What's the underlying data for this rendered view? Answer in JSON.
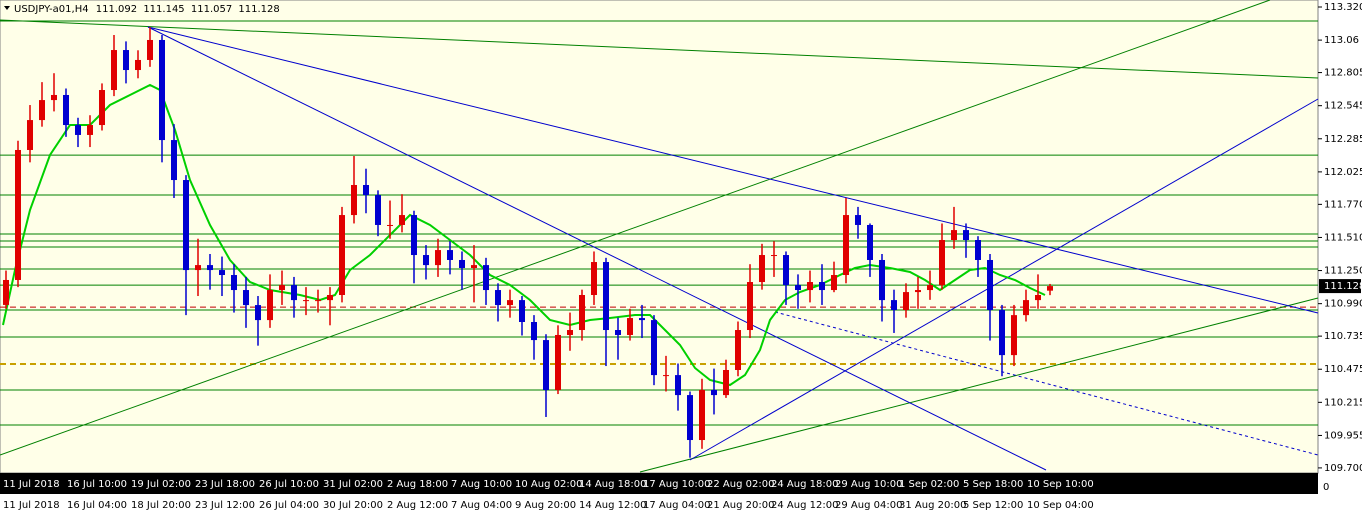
{
  "chart_data": {
    "type": "candlestick",
    "title": "USDJPY-a01,H4",
    "up_color": "#e00000",
    "down_color": "#0000d0",
    "ylim": [
      109.66,
      113.375
    ],
    "yticks": [
      {
        "value": 113.32,
        "label": "113.320"
      },
      113.06,
      112.805,
      112.545,
      112.285,
      112.025,
      {
        "value": 111.77,
        "label": "111.770"
      },
      {
        "value": 111.51,
        "label": "111.510"
      },
      {
        "value": 111.25,
        "label": "111.250"
      },
      {
        "value": 110.99,
        "label": "110.990"
      },
      110.735,
      110.475,
      110.215,
      109.955,
      {
        "value": 109.7,
        "label": "109.700"
      }
    ],
    "open": [
      110.98,
      111.176,
      112.197,
      112.432,
      112.589,
      112.629,
      112.393,
      112.315,
      112.393,
      112.668,
      112.982,
      112.825,
      112.904,
      113.061,
      112.275,
      111.961,
      111.254,
      111.293,
      111.254,
      111.215,
      111.097,
      110.979,
      110.861,
      111.097,
      111.136,
      111.018,
      111.018,
      111.018,
      111.058,
      111.686,
      111.922,
      111.843,
      111.608,
      111.608,
      111.686,
      111.372,
      111.293,
      111.411,
      111.333,
      111.27,
      111.293,
      111.097,
      110.979,
      111.018,
      110.846,
      110.704,
      110.312,
      110.744,
      110.783,
      111.058,
      111.317,
      110.783,
      110.744,
      110.877,
      110.861,
      110.429,
      110.429,
      110.272,
      109.919,
      110.312,
      110.272,
      110.469,
      110.783,
      111.16,
      111.372,
      111.372,
      111.136,
      111.097,
      111.16,
      111.097,
      111.215,
      111.686,
      111.608,
      111.333,
      111.018,
      110.94,
      111.081,
      111.097,
      111.136,
      111.49,
      111.568,
      111.49,
      111.333,
      110.94,
      110.586,
      110.9,
      111.018,
      111.092
    ],
    "high": [
      111.25,
      112.27,
      112.55,
      112.73,
      112.8,
      112.68,
      112.45,
      112.47,
      112.72,
      113.1,
      113.05,
      112.98,
      113.16,
      113.1,
      112.4,
      112.0,
      111.5,
      111.38,
      111.36,
      111.3,
      111.2,
      111.05,
      111.22,
      111.25,
      111.2,
      111.12,
      111.1,
      111.12,
      111.75,
      112.15,
      112.05,
      111.88,
      111.8,
      111.85,
      111.72,
      111.45,
      111.5,
      111.48,
      111.4,
      111.45,
      111.35,
      111.15,
      111.1,
      111.05,
      110.9,
      110.75,
      110.82,
      110.92,
      111.1,
      111.4,
      111.35,
      110.88,
      110.95,
      110.98,
      110.9,
      110.58,
      110.52,
      110.3,
      110.4,
      110.48,
      110.55,
      110.85,
      111.3,
      111.46,
      111.48,
      111.4,
      111.22,
      111.25,
      111.3,
      111.32,
      111.82,
      111.75,
      111.62,
      111.38,
      111.1,
      111.15,
      111.2,
      111.25,
      111.62,
      111.75,
      111.62,
      111.52,
      111.38,
      110.98,
      110.98,
      111.1,
      111.22,
      111.145
    ],
    "low": [
      110.95,
      111.12,
      112.1,
      112.38,
      112.5,
      112.3,
      112.22,
      112.22,
      112.35,
      112.62,
      112.72,
      112.76,
      112.85,
      112.1,
      111.82,
      110.9,
      111.05,
      111.1,
      111.05,
      110.92,
      110.8,
      110.66,
      110.8,
      110.98,
      110.88,
      110.9,
      110.92,
      110.82,
      111.0,
      111.62,
      111.7,
      111.52,
      111.5,
      111.55,
      111.15,
      111.18,
      111.2,
      111.22,
      111.1,
      111.0,
      110.98,
      110.85,
      110.88,
      110.74,
      110.55,
      110.1,
      110.28,
      110.62,
      110.7,
      110.98,
      110.5,
      110.55,
      110.7,
      110.72,
      110.35,
      110.3,
      110.15,
      109.78,
      109.85,
      110.12,
      110.25,
      110.42,
      110.72,
      111.1,
      111.2,
      110.98,
      110.95,
      111.0,
      110.98,
      111.08,
      111.15,
      111.5,
      111.2,
      110.85,
      110.76,
      110.88,
      110.95,
      111.02,
      111.1,
      111.42,
      111.35,
      111.2,
      110.7,
      110.42,
      110.5,
      110.85,
      110.95,
      111.057
    ],
    "close": [
      111.176,
      112.197,
      112.432,
      112.589,
      112.629,
      112.393,
      112.315,
      112.393,
      112.668,
      112.982,
      112.825,
      112.904,
      113.061,
      112.275,
      111.961,
      111.254,
      111.293,
      111.254,
      111.215,
      111.097,
      110.979,
      110.861,
      111.097,
      111.136,
      111.018,
      111.018,
      111.018,
      111.058,
      111.686,
      111.922,
      111.843,
      111.608,
      111.608,
      111.686,
      111.372,
      111.293,
      111.411,
      111.333,
      111.27,
      111.293,
      111.097,
      110.979,
      111.018,
      110.846,
      110.704,
      110.312,
      110.744,
      110.783,
      111.058,
      111.317,
      110.783,
      110.744,
      110.877,
      110.861,
      110.429,
      110.429,
      110.272,
      109.919,
      110.312,
      110.272,
      110.469,
      110.783,
      111.16,
      111.372,
      111.372,
      111.136,
      111.097,
      111.16,
      111.097,
      111.215,
      111.686,
      111.608,
      111.333,
      111.018,
      110.94,
      111.081,
      111.097,
      111.136,
      111.49,
      111.568,
      111.49,
      111.333,
      110.94,
      110.586,
      110.9,
      111.018,
      111.058,
      111.128
    ],
    "levels": {
      "color": "#008000",
      "values": [
        113.21,
        112.157,
        111.843,
        111.537,
        111.482,
        111.435,
        111.262,
        111.136,
        110.94,
        110.728,
        110.312,
        110.037
      ]
    },
    "dashed_levels": [
      {
        "value": 110.516,
        "color": "#c8a000"
      },
      {
        "value": 110.963,
        "color": "#c00000"
      }
    ],
    "time_labels_top": [
      "11 Jul 2018",
      "16 Jul 10:00",
      "19 Jul 02:00",
      "23 Jul 18:00",
      "26 Jul 10:00",
      "31 Jul 02:00",
      "2 Aug 18:00",
      "7 Aug 10:00",
      "10 Aug 02:00",
      "14 Aug 18:00",
      "17 Aug 10:00",
      "22 Aug 02:00",
      "24 Aug 18:00",
      "29 Aug 10:00",
      "1 Sep 02:00",
      "5 Sep 18:00",
      "10 Sep 10:00"
    ],
    "time_labels_bottom": [
      "11 Jul 2018",
      "16 Jul 04:00",
      "18 Jul 20:00",
      "23 Jul 12:00",
      "26 Jul 04:00",
      "30 Jul 20:00",
      "2 Aug 12:00",
      "7 Aug 04:00",
      "9 Aug 20:00",
      "14 Aug 12:00",
      "17 Aug 04:00",
      "21 Aug 20:00",
      "24 Aug 12:00",
      "29 Aug 04:00",
      "31 Aug 20:00",
      "5 Sep 12:00",
      "10 Sep 04:00"
    ],
    "indicator_zero": 0
  }
}
